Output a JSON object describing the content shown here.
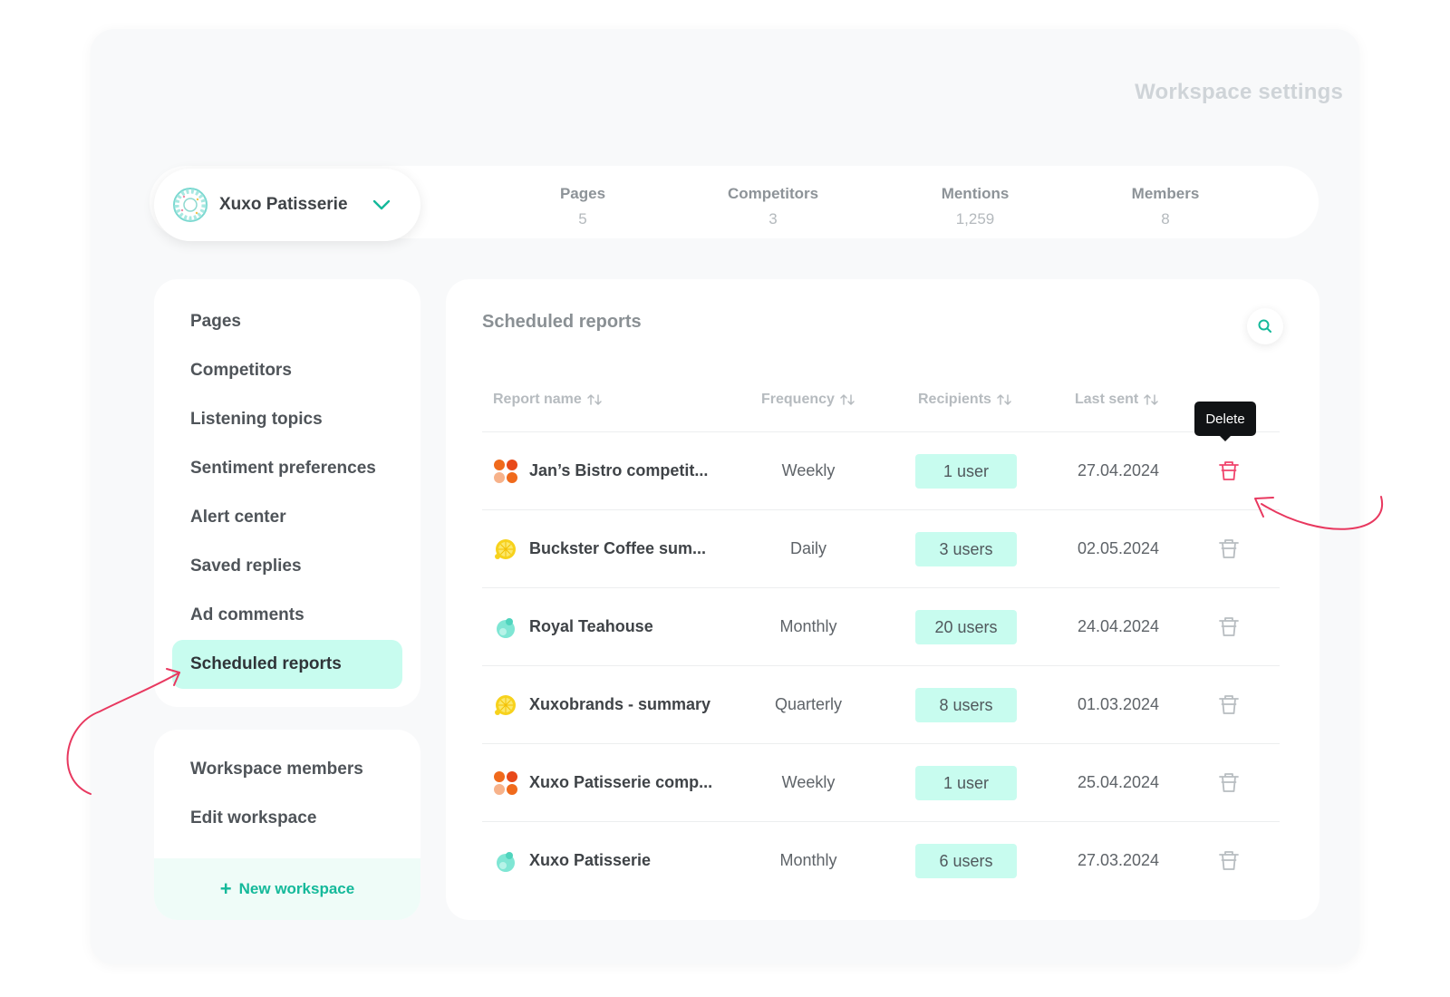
{
  "page_title": "Workspace settings",
  "workspace": {
    "name": "Xuxo Patisserie",
    "logo_icon": "donut-icon",
    "dropdown_icon": "chevron-down-icon"
  },
  "stats": [
    {
      "label": "Pages",
      "value": "5"
    },
    {
      "label": "Competitors",
      "value": "3"
    },
    {
      "label": "Mentions",
      "value": "1,259"
    },
    {
      "label": "Members",
      "value": "8"
    }
  ],
  "sidebar": {
    "items": [
      {
        "label": "Pages",
        "active": false
      },
      {
        "label": "Competitors",
        "active": false
      },
      {
        "label": "Listening topics",
        "active": false
      },
      {
        "label": "Sentiment preferences",
        "active": false
      },
      {
        "label": "Alert center",
        "active": false
      },
      {
        "label": "Saved replies",
        "active": false
      },
      {
        "label": "Ad comments",
        "active": false
      },
      {
        "label": "Scheduled reports",
        "active": true
      }
    ],
    "secondary_items": [
      {
        "label": "Workspace members"
      },
      {
        "label": "Edit workspace"
      }
    ],
    "new_workspace_label": "New workspace"
  },
  "main": {
    "title": "Scheduled reports",
    "search_icon": "search-icon",
    "columns": [
      {
        "label": "Report name"
      },
      {
        "label": "Frequency"
      },
      {
        "label": "Recipients"
      },
      {
        "label": "Last sent"
      }
    ],
    "rows": [
      {
        "name": "Jan’s Bistro competit...",
        "icon": "tiles-icon",
        "frequency": "Weekly",
        "recipients": "1 user",
        "last_sent": "27.04.2024",
        "hovered": true
      },
      {
        "name": "Buckster Coffee sum...",
        "icon": "lemon-icon",
        "frequency": "Daily",
        "recipients": "3 users",
        "last_sent": "02.05.2024",
        "hovered": false
      },
      {
        "name": "Royal Teahouse",
        "icon": "drop-icon",
        "frequency": "Monthly",
        "recipients": "20 users",
        "last_sent": "24.04.2024",
        "hovered": false
      },
      {
        "name": "Xuxobrands - summary",
        "icon": "lemon-icon",
        "frequency": "Quarterly",
        "recipients": "8 users",
        "last_sent": "01.03.2024",
        "hovered": false
      },
      {
        "name": "Xuxo Patisserie comp...",
        "icon": "tiles-icon",
        "frequency": "Weekly",
        "recipients": "1 user",
        "last_sent": "25.04.2024",
        "hovered": false
      },
      {
        "name": "Xuxo Patisserie",
        "icon": "drop-icon",
        "frequency": "Monthly",
        "recipients": "6 users",
        "last_sent": "27.03.2024",
        "hovered": false
      }
    ],
    "delete_tooltip": "Delete"
  },
  "colors": {
    "accent": "#14b99a",
    "active_bg": "#c8fcef",
    "delete_hover": "#f0446c",
    "annotation": "#e8385f"
  }
}
